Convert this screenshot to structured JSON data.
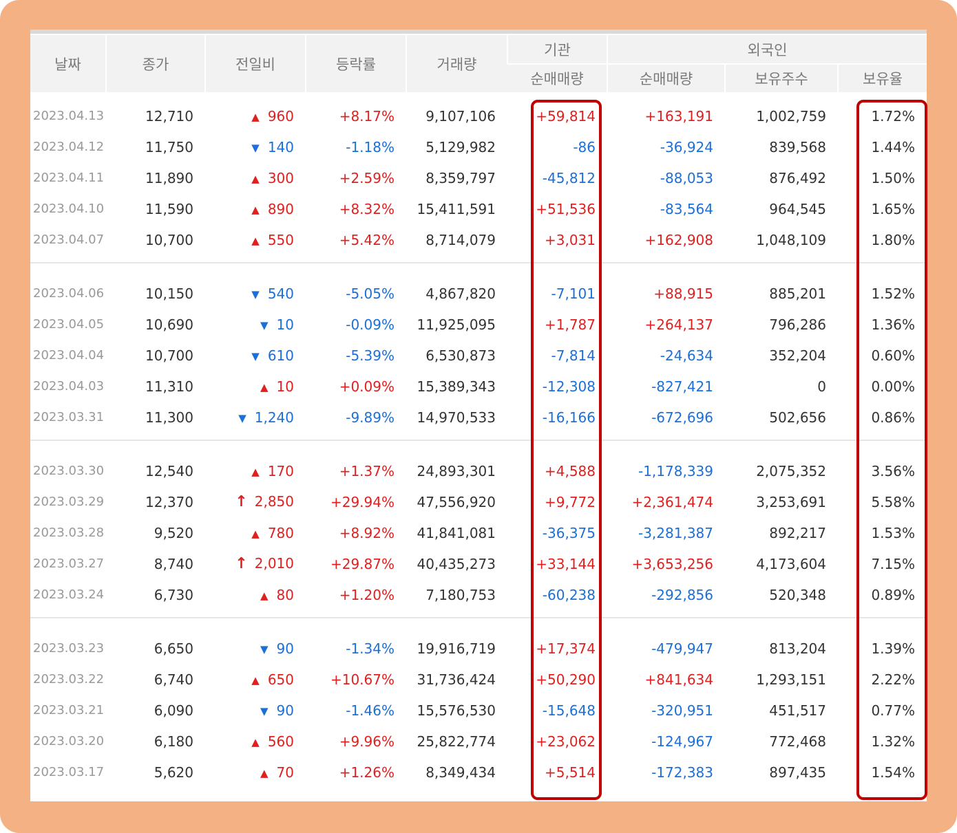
{
  "headers": {
    "date": "날짜",
    "close": "종가",
    "change": "전일비",
    "rate": "등락률",
    "volume": "거래량",
    "institution": "기관",
    "foreign": "외국인",
    "inst_net": "순매매량",
    "foreign_net": "순매매량",
    "foreign_shares": "보유주수",
    "foreign_ratio": "보유율"
  },
  "colors": {
    "up": "#e0201f",
    "down": "#1a6fd8",
    "highlight": "#c00000",
    "frame": "#f4b183"
  },
  "groups": [
    [
      {
        "date": "2023.04.13",
        "close": "12,710",
        "dir": "up",
        "change": "960",
        "rate": "+8.17%",
        "volume": "9,107,106",
        "inst": "+59,814",
        "foreign": "+163,191",
        "shares": "1,002,759",
        "ratio": "1.72%"
      },
      {
        "date": "2023.04.12",
        "close": "11,750",
        "dir": "down",
        "change": "140",
        "rate": "-1.18%",
        "volume": "5,129,982",
        "inst": "-86",
        "foreign": "-36,924",
        "shares": "839,568",
        "ratio": "1.44%"
      },
      {
        "date": "2023.04.11",
        "close": "11,890",
        "dir": "up",
        "change": "300",
        "rate": "+2.59%",
        "volume": "8,359,797",
        "inst": "-45,812",
        "foreign": "-88,053",
        "shares": "876,492",
        "ratio": "1.50%"
      },
      {
        "date": "2023.04.10",
        "close": "11,590",
        "dir": "up",
        "change": "890",
        "rate": "+8.32%",
        "volume": "15,411,591",
        "inst": "+51,536",
        "foreign": "-83,564",
        "shares": "964,545",
        "ratio": "1.65%"
      },
      {
        "date": "2023.04.07",
        "close": "10,700",
        "dir": "up",
        "change": "550",
        "rate": "+5.42%",
        "volume": "8,714,079",
        "inst": "+3,031",
        "foreign": "+162,908",
        "shares": "1,048,109",
        "ratio": "1.80%"
      }
    ],
    [
      {
        "date": "2023.04.06",
        "close": "10,150",
        "dir": "down",
        "change": "540",
        "rate": "-5.05%",
        "volume": "4,867,820",
        "inst": "-7,101",
        "foreign": "+88,915",
        "shares": "885,201",
        "ratio": "1.52%"
      },
      {
        "date": "2023.04.05",
        "close": "10,690",
        "dir": "down",
        "change": "10",
        "rate": "-0.09%",
        "volume": "11,925,095",
        "inst": "+1,787",
        "foreign": "+264,137",
        "shares": "796,286",
        "ratio": "1.36%"
      },
      {
        "date": "2023.04.04",
        "close": "10,700",
        "dir": "down",
        "change": "610",
        "rate": "-5.39%",
        "volume": "6,530,873",
        "inst": "-7,814",
        "foreign": "-24,634",
        "shares": "352,204",
        "ratio": "0.60%"
      },
      {
        "date": "2023.04.03",
        "close": "11,310",
        "dir": "up",
        "change": "10",
        "rate": "+0.09%",
        "volume": "15,389,343",
        "inst": "-12,308",
        "foreign": "-827,421",
        "shares": "0",
        "ratio": "0.00%"
      },
      {
        "date": "2023.03.31",
        "close": "11,300",
        "dir": "down",
        "change": "1,240",
        "rate": "-9.89%",
        "volume": "14,970,533",
        "inst": "-16,166",
        "foreign": "-672,696",
        "shares": "502,656",
        "ratio": "0.86%"
      }
    ],
    [
      {
        "date": "2023.03.30",
        "close": "12,540",
        "dir": "up",
        "change": "170",
        "rate": "+1.37%",
        "volume": "24,893,301",
        "inst": "+4,588",
        "foreign": "-1,178,339",
        "shares": "2,075,352",
        "ratio": "3.56%"
      },
      {
        "date": "2023.03.29",
        "close": "12,370",
        "dir": "limit",
        "change": "2,850",
        "rate": "+29.94%",
        "volume": "47,556,920",
        "inst": "+9,772",
        "foreign": "+2,361,474",
        "shares": "3,253,691",
        "ratio": "5.58%"
      },
      {
        "date": "2023.03.28",
        "close": "9,520",
        "dir": "up",
        "change": "780",
        "rate": "+8.92%",
        "volume": "41,841,081",
        "inst": "-36,375",
        "foreign": "-3,281,387",
        "shares": "892,217",
        "ratio": "1.53%"
      },
      {
        "date": "2023.03.27",
        "close": "8,740",
        "dir": "limit",
        "change": "2,010",
        "rate": "+29.87%",
        "volume": "40,435,273",
        "inst": "+33,144",
        "foreign": "+3,653,256",
        "shares": "4,173,604",
        "ratio": "7.15%"
      },
      {
        "date": "2023.03.24",
        "close": "6,730",
        "dir": "up",
        "change": "80",
        "rate": "+1.20%",
        "volume": "7,180,753",
        "inst": "-60,238",
        "foreign": "-292,856",
        "shares": "520,348",
        "ratio": "0.89%"
      }
    ],
    [
      {
        "date": "2023.03.23",
        "close": "6,650",
        "dir": "down",
        "change": "90",
        "rate": "-1.34%",
        "volume": "19,916,719",
        "inst": "+17,374",
        "foreign": "-479,947",
        "shares": "813,204",
        "ratio": "1.39%"
      },
      {
        "date": "2023.03.22",
        "close": "6,740",
        "dir": "up",
        "change": "650",
        "rate": "+10.67%",
        "volume": "31,736,424",
        "inst": "+50,290",
        "foreign": "+841,634",
        "shares": "1,293,151",
        "ratio": "2.22%"
      },
      {
        "date": "2023.03.21",
        "close": "6,090",
        "dir": "down",
        "change": "90",
        "rate": "-1.46%",
        "volume": "15,576,530",
        "inst": "-15,648",
        "foreign": "-320,951",
        "shares": "451,517",
        "ratio": "0.77%"
      },
      {
        "date": "2023.03.20",
        "close": "6,180",
        "dir": "up",
        "change": "560",
        "rate": "+9.96%",
        "volume": "25,822,774",
        "inst": "+23,062",
        "foreign": "-124,967",
        "shares": "772,468",
        "ratio": "1.32%"
      },
      {
        "date": "2023.03.17",
        "close": "5,620",
        "dir": "up",
        "change": "70",
        "rate": "+1.26%",
        "volume": "8,349,434",
        "inst": "+5,514",
        "foreign": "-172,383",
        "shares": "897,435",
        "ratio": "1.54%"
      }
    ]
  ]
}
